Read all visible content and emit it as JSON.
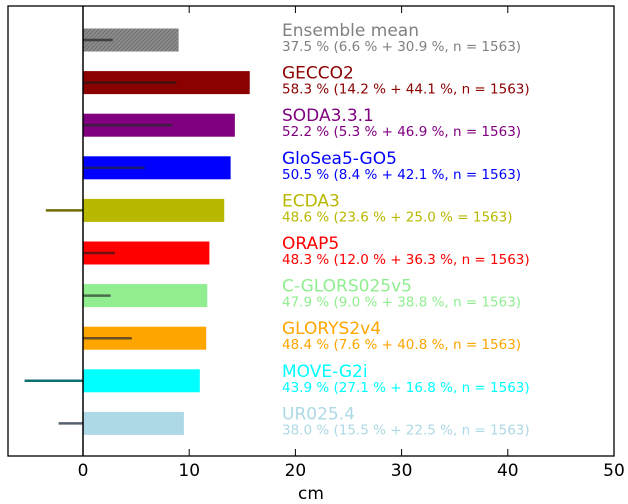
{
  "chart_data": {
    "type": "bar",
    "orientation": "horizontal",
    "xlabel": "cm",
    "xlim": [
      -7,
      50
    ],
    "xticks": [
      0,
      10,
      20,
      30,
      40,
      50
    ],
    "grid": false,
    "series": [
      {
        "name": "Ensemble mean",
        "value": 9.0,
        "error_bar": 2.8,
        "color": "#808080",
        "error_color": "#404040",
        "hatched": true,
        "stat": "37.5 % (6.6 % + 30.9 %, n = 1563)"
      },
      {
        "name": "GECCO2",
        "value": 15.7,
        "error_bar": 8.8,
        "color": "#8b0000",
        "error_color": "#451010",
        "stat": "58.3 % (14.2 % + 44.1 %, n = 1563)"
      },
      {
        "name": "SODA3.3.1",
        "value": 14.3,
        "error_bar": 8.4,
        "color": "#800080",
        "error_color": "#3d2040",
        "stat": "52.2 % (5.3 % + 46.9 %, n = 1563)"
      },
      {
        "name": "GloSea5-GO5",
        "value": 13.9,
        "error_bar": 5.8,
        "color": "#0000ff",
        "error_color": "#1a1a6e",
        "stat": "50.5 % (8.4 % + 42.1 %, n = 1563)"
      },
      {
        "name": "ECDA3",
        "value": 13.3,
        "error_bar": -3.5,
        "color": "#b8b800",
        "error_color": "#6e6e00",
        "stat": "48.6 % (23.6 % + 25.0 % = 1563)"
      },
      {
        "name": "ORAP5",
        "value": 11.9,
        "error_bar": 3.0,
        "color": "#ff0000",
        "error_color": "#6e1010",
        "stat": "48.3 % (12.0 % + 36.3 %, n = 1563)"
      },
      {
        "name": "C-GLORS025v5",
        "value": 11.7,
        "error_bar": 2.6,
        "color": "#90ee90",
        "error_color": "#4a6e4a",
        "stat": "47.9 % (9.0 % + 38.8 %, n = 1563)"
      },
      {
        "name": "GLORYS2v4",
        "value": 11.6,
        "error_bar": 4.6,
        "color": "#ffa500",
        "error_color": "#6e5020",
        "stat": "48.4 % (7.6 % + 40.8 %, n = 1563)"
      },
      {
        "name": "MOVE-G2i",
        "value": 11.0,
        "error_bar": -5.5,
        "color": "#00ffff",
        "error_color": "#107070",
        "stat": "43.9 % (27.1 % + 16.8 %, n = 1563)"
      },
      {
        "name": "UR025.4",
        "value": 9.5,
        "error_bar": -2.3,
        "color": "#add8e6",
        "error_color": "#556070",
        "stat": "38.0 % (15.5 % + 22.5 %, n = 1563)"
      }
    ]
  }
}
